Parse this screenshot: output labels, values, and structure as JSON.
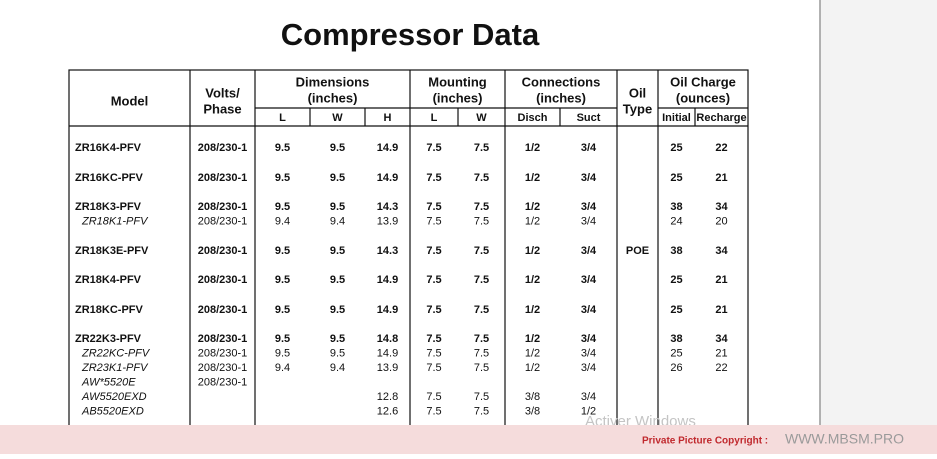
{
  "title": "Compressor Data",
  "table": {
    "headers": [
      {
        "lines": [
          "Model"
        ]
      },
      {
        "lines": [
          "Volts/",
          "Phase"
        ]
      },
      {
        "lines": [
          "Dimensions",
          "(inches)"
        ],
        "sub": [
          "L",
          "W",
          "H"
        ]
      },
      {
        "lines": [
          "Mounting",
          "(inches)"
        ],
        "sub": [
          "L",
          "W"
        ]
      },
      {
        "lines": [
          "Connections",
          "(inches)"
        ],
        "sub": [
          "Disch",
          "Suct"
        ]
      },
      {
        "lines": [
          "Oil",
          "Type"
        ]
      },
      {
        "lines": [
          "Oil Charge",
          "(ounces)"
        ],
        "sub": [
          "Initial",
          "Recharge"
        ]
      }
    ],
    "groups": [
      {
        "rows": [
          [
            "ZR16K4-PFV",
            "208/230-1",
            "9.5",
            "9.5",
            "14.9",
            "7.5",
            "7.5",
            "1/2",
            "3/4",
            null,
            "25",
            "22"
          ]
        ]
      },
      {
        "rows": [
          [
            "ZR16KC-PFV",
            "208/230-1",
            "9.5",
            "9.5",
            "14.9",
            "7.5",
            "7.5",
            "1/2",
            "3/4",
            null,
            "25",
            "21"
          ]
        ]
      },
      {
        "rows": [
          [
            "ZR18K3-PFV",
            "208/230-1",
            "9.5",
            "9.5",
            "14.3",
            "7.5",
            "7.5",
            "1/2",
            "3/4",
            null,
            "38",
            "34"
          ],
          [
            "ZR18K1-PFV",
            "208/230-1",
            "9.4",
            "9.4",
            "13.9",
            "7.5",
            "7.5",
            "1/2",
            "3/4",
            null,
            "24",
            "20"
          ]
        ]
      },
      {
        "rows": [
          [
            "ZR18K3E-PFV",
            "208/230-1",
            "9.5",
            "9.5",
            "14.3",
            "7.5",
            "7.5",
            "1/2",
            "3/4",
            "POE",
            "38",
            "34"
          ]
        ]
      },
      {
        "rows": [
          [
            "ZR18K4-PFV",
            "208/230-1",
            "9.5",
            "9.5",
            "14.9",
            "7.5",
            "7.5",
            "1/2",
            "3/4",
            null,
            "25",
            "21"
          ]
        ]
      },
      {
        "rows": [
          [
            "ZR18KC-PFV",
            "208/230-1",
            "9.5",
            "9.5",
            "14.9",
            "7.5",
            "7.5",
            "1/2",
            "3/4",
            null,
            "25",
            "21"
          ]
        ]
      },
      {
        "rows": [
          [
            "ZR22K3-PFV",
            "208/230-1",
            "9.5",
            "9.5",
            "14.8",
            "7.5",
            "7.5",
            "1/2",
            "3/4",
            null,
            "38",
            "34"
          ],
          [
            "ZR22KC-PFV",
            "208/230-1",
            "9.5",
            "9.5",
            "14.9",
            "7.5",
            "7.5",
            "1/2",
            "3/4",
            null,
            "25",
            "21"
          ],
          [
            "ZR23K1-PFV",
            "208/230-1",
            "9.4",
            "9.4",
            "13.9",
            "7.5",
            "7.5",
            "1/2",
            "3/4",
            null,
            "26",
            "22"
          ],
          [
            "AW*5520E",
            "208/230-1",
            null,
            null,
            null,
            null,
            null,
            null,
            null,
            null,
            null,
            null
          ],
          [
            "AW5520EXD",
            null,
            null,
            null,
            "12.8",
            "7.5",
            "7.5",
            "3/8",
            "3/4",
            null,
            null,
            null
          ],
          [
            "AB5520EXD",
            null,
            null,
            null,
            "12.6",
            "7.5",
            "7.5",
            "3/8",
            "1/2",
            null,
            null,
            null
          ]
        ]
      }
    ]
  },
  "watermark": "Activer Windows",
  "footer": {
    "label": "Private Picture Copyright :",
    "site": "WWW.MBSM.PRO"
  }
}
